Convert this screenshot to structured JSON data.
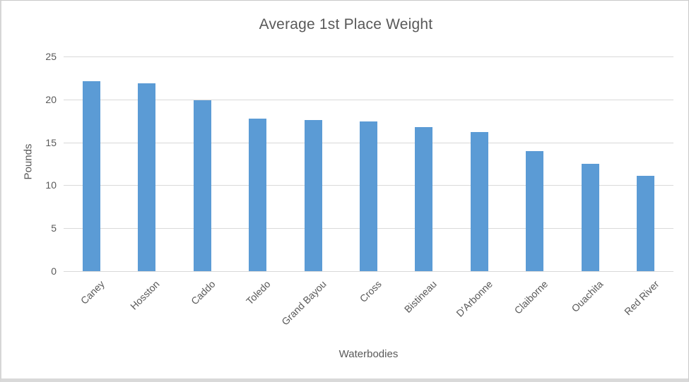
{
  "chart_data": {
    "type": "bar",
    "title": "Average 1st Place Weight",
    "xlabel": "Waterbodies",
    "ylabel": "Pounds",
    "categories": [
      "Caney",
      "Hosston",
      "Caddo",
      "Toledo",
      "Grand Bayou",
      "Cross",
      "Bistineau",
      "D'Arbonne",
      "Claiborne",
      "Ouachita",
      "Red River"
    ],
    "values": [
      22.1,
      21.9,
      19.9,
      17.8,
      17.6,
      17.4,
      16.8,
      16.2,
      14.0,
      12.5,
      11.1
    ],
    "ylim": [
      0,
      25
    ],
    "yticks": [
      0,
      5,
      10,
      15,
      20,
      25
    ],
    "grid": true,
    "legend": "none",
    "colors": {
      "bar": "#5b9bd5",
      "text": "#595959",
      "gridline": "#d9d9d9"
    }
  }
}
